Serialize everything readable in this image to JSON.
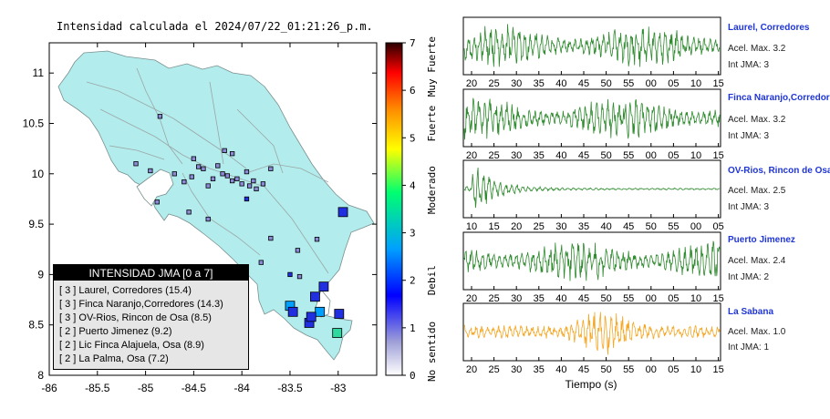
{
  "map": {
    "title": "Intensidad calculada el 2024/07/22_01:21:26_p.m.",
    "x_ticks": [
      "-86",
      "-85.5",
      "-85",
      "-84.5",
      "-84",
      "-83.5",
      "-83"
    ],
    "y_ticks": [
      "11",
      "10.5",
      "10",
      "9.5",
      "9",
      "8.5",
      "8"
    ],
    "legend": {
      "title": "INTENSIDAD JMA [0 a 7]",
      "rows": [
        "[ 3 ]  Laurel, Corredores (15.4)",
        "[ 3 ]  Finca Naranjo,Corredores (14.3)",
        "[ 3 ]  OV-Rios, Rincon de Osa (8.5)",
        "[ 2 ]  Puerto Jimenez (9.2)",
        "[ 2 ]  Lic Finca Alajuela, Osa (8.9)",
        "[ 2 ]  La Palma, Osa (7.2)"
      ]
    }
  },
  "colorbar": {
    "ticks": [
      "0",
      "1",
      "2",
      "3",
      "4",
      "5",
      "6",
      "7"
    ],
    "labels": [
      "No sentido",
      "Debil",
      "Moderado",
      "Fuerte",
      "Muy Fuerte"
    ],
    "colors": [
      "#ffffff",
      "#8a8ad6",
      "#0000ff",
      "#00a8ff",
      "#00ff7f",
      "#ffff00",
      "#ff8800",
      "#ff0000",
      "#330000"
    ]
  },
  "stations": [
    {
      "name": "Laurel, Corredores",
      "acel": "Acel. Max. 3.2",
      "jma": "Int JMA: 3",
      "color": "#2e8b2e",
      "ticks": [
        "20",
        "25",
        "30",
        "35",
        "40",
        "45",
        "50",
        "55",
        "00",
        "05",
        "10",
        "15"
      ]
    },
    {
      "name": "Finca Naranjo,Corredores",
      "acel": "Acel. Max. 3.2",
      "jma": "Int JMA: 3",
      "color": "#2e8b2e",
      "ticks": [
        "20",
        "25",
        "30",
        "35",
        "40",
        "45",
        "50",
        "55",
        "00",
        "05",
        "10",
        "15"
      ]
    },
    {
      "name": "OV-Rios, Rincon de Osa",
      "acel": "Acel. Max. 2.5",
      "jma": "Int JMA: 3",
      "color": "#2e8b2e",
      "ticks": [
        "10",
        "15",
        "20",
        "25",
        "30",
        "35",
        "40",
        "45",
        "50",
        "55",
        "00",
        "05"
      ]
    },
    {
      "name": "Puerto Jimenez",
      "acel": "Acel. Max. 2.4",
      "jma": "Int JMA: 2",
      "color": "#2e8b2e",
      "ticks": [
        "20",
        "25",
        "30",
        "35",
        "40",
        "45",
        "50",
        "55",
        "00",
        "05",
        "10",
        "15"
      ]
    },
    {
      "name": "La Sabana",
      "acel": "Acel. Max. 1.0",
      "jma": "Int JMA: 1",
      "color": "#f5a623",
      "ticks": [
        "20",
        "25",
        "30",
        "35",
        "40",
        "45",
        "50",
        "55",
        "00",
        "05",
        "10",
        "15"
      ]
    }
  ],
  "waveform_xlabel": "Tiempo (s)",
  "chart_data": [
    {
      "type": "scatter",
      "title": "Intensidad calculada el 2024/07/22_01:21:26_p.m.",
      "xlim": [
        -86,
        -82.6
      ],
      "ylim": [
        8,
        11.3
      ],
      "legend_placement": "bottom-left",
      "points": [
        {
          "lon": -82.95,
          "lat": 9.62,
          "intensity": 2,
          "size": "large"
        },
        {
          "lon": -83.15,
          "lat": 8.88,
          "intensity": 2,
          "size": "large"
        },
        {
          "lon": -83.24,
          "lat": 8.78,
          "intensity": 2,
          "size": "large"
        },
        {
          "lon": -83.19,
          "lat": 8.63,
          "intensity": 3,
          "size": "large"
        },
        {
          "lon": -83.3,
          "lat": 8.52,
          "intensity": 2,
          "size": "large"
        },
        {
          "lon": -83.5,
          "lat": 8.69,
          "intensity": 3,
          "size": "large"
        },
        {
          "lon": -83.47,
          "lat": 8.63,
          "intensity": 2,
          "size": "large"
        },
        {
          "lon": -82.99,
          "lat": 8.61,
          "intensity": 2,
          "size": "large"
        },
        {
          "lon": -83.01,
          "lat": 8.42,
          "intensity": 4,
          "size": "large"
        },
        {
          "lon": -83.28,
          "lat": 8.58,
          "intensity": 2,
          "size": "large"
        },
        {
          "lon": -83.22,
          "lat": 9.35,
          "intensity": 1,
          "size": "small"
        },
        {
          "lon": -83.42,
          "lat": 9.24,
          "intensity": 1,
          "size": "small"
        },
        {
          "lon": -83.7,
          "lat": 9.36,
          "intensity": 1,
          "size": "small"
        },
        {
          "lon": -83.8,
          "lat": 9.12,
          "intensity": 1,
          "size": "small"
        },
        {
          "lon": -83.5,
          "lat": 9.0,
          "intensity": 2,
          "size": "small"
        },
        {
          "lon": -83.4,
          "lat": 8.98,
          "intensity": 1,
          "size": "small"
        },
        {
          "lon": -84.1,
          "lat": 9.93,
          "intensity": 1,
          "size": "small"
        },
        {
          "lon": -84.05,
          "lat": 9.95,
          "intensity": 1,
          "size": "small"
        },
        {
          "lon": -84.15,
          "lat": 9.98,
          "intensity": 1,
          "size": "small"
        },
        {
          "lon": -84.2,
          "lat": 10.0,
          "intensity": 1,
          "size": "small"
        },
        {
          "lon": -84.0,
          "lat": 9.9,
          "intensity": 1,
          "size": "small"
        },
        {
          "lon": -83.92,
          "lat": 9.88,
          "intensity": 1,
          "size": "small"
        },
        {
          "lon": -83.85,
          "lat": 9.85,
          "intensity": 1,
          "size": "small"
        },
        {
          "lon": -84.3,
          "lat": 9.95,
          "intensity": 1,
          "size": "small"
        },
        {
          "lon": -84.4,
          "lat": 10.05,
          "intensity": 1,
          "size": "small"
        },
        {
          "lon": -84.45,
          "lat": 10.07,
          "intensity": 1,
          "size": "small"
        },
        {
          "lon": -84.25,
          "lat": 10.08,
          "intensity": 1,
          "size": "small"
        },
        {
          "lon": -84.35,
          "lat": 9.88,
          "intensity": 1,
          "size": "small"
        },
        {
          "lon": -83.95,
          "lat": 10.02,
          "intensity": 1,
          "size": "small"
        },
        {
          "lon": -83.88,
          "lat": 9.93,
          "intensity": 1,
          "size": "small"
        },
        {
          "lon": -83.78,
          "lat": 9.9,
          "intensity": 1,
          "size": "small"
        },
        {
          "lon": -83.7,
          "lat": 10.05,
          "intensity": 1,
          "size": "small"
        },
        {
          "lon": -84.6,
          "lat": 9.92,
          "intensity": 1,
          "size": "small"
        },
        {
          "lon": -84.7,
          "lat": 10.0,
          "intensity": 1,
          "size": "small"
        },
        {
          "lon": -84.95,
          "lat": 10.03,
          "intensity": 1,
          "size": "small"
        },
        {
          "lon": -84.55,
          "lat": 9.62,
          "intensity": 1,
          "size": "small"
        },
        {
          "lon": -84.35,
          "lat": 9.55,
          "intensity": 1,
          "size": "small"
        },
        {
          "lon": -84.88,
          "lat": 9.72,
          "intensity": 1,
          "size": "small"
        },
        {
          "lon": -85.1,
          "lat": 10.1,
          "intensity": 1,
          "size": "small"
        },
        {
          "lon": -84.18,
          "lat": 10.23,
          "intensity": 1,
          "size": "small"
        },
        {
          "lon": -84.1,
          "lat": 10.2,
          "intensity": 1,
          "size": "small"
        },
        {
          "lon": -84.5,
          "lat": 10.15,
          "intensity": 1,
          "size": "small"
        },
        {
          "lon": -84.85,
          "lat": 10.57,
          "intensity": 1,
          "size": "small"
        },
        {
          "lon": -83.95,
          "lat": 9.75,
          "intensity": 2,
          "size": "small"
        },
        {
          "lon": -84.52,
          "lat": 9.97,
          "intensity": 1,
          "size": "small"
        }
      ]
    },
    {
      "type": "line",
      "title": "",
      "xlabel": "Tiempo (s)",
      "series": [
        {
          "name": "Laurel, Corredores",
          "acel_max": 3.2,
          "int_jma": 3
        },
        {
          "name": "Finca Naranjo,Corredores",
          "acel_max": 3.2,
          "int_jma": 3
        },
        {
          "name": "OV-Rios, Rincon de Osa",
          "acel_max": 2.5,
          "int_jma": 3
        },
        {
          "name": "Puerto Jimenez",
          "acel_max": 2.4,
          "int_jma": 2
        },
        {
          "name": "La Sabana",
          "acel_max": 1.0,
          "int_jma": 1
        }
      ]
    }
  ]
}
